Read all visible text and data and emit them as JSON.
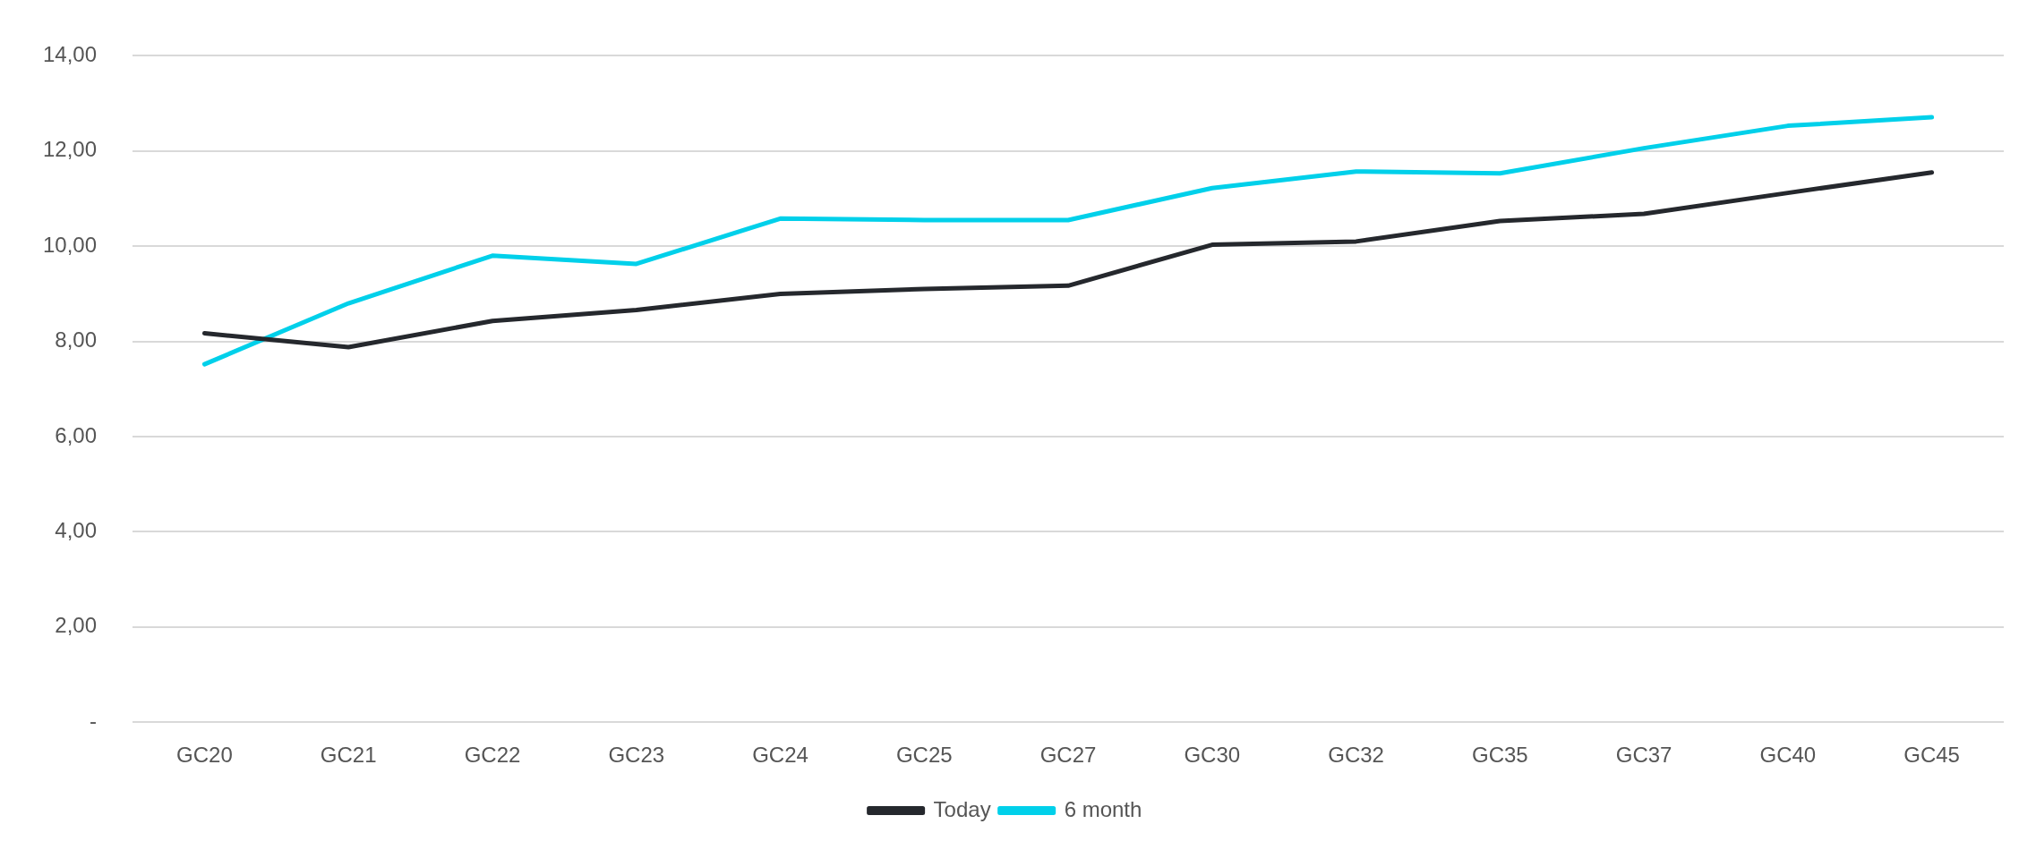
{
  "chart_data": {
    "type": "line",
    "categories": [
      "GC20",
      "GC21",
      "GC22",
      "GC23",
      "GC24",
      "GC25",
      "GC27",
      "GC30",
      "GC32",
      "GC35",
      "GC37",
      "GC40",
      "GC45"
    ],
    "series": [
      {
        "name": "Today",
        "color": "#25282d",
        "values": [
          8.17,
          7.88,
          8.43,
          8.66,
          9.0,
          9.1,
          9.17,
          10.03,
          10.1,
          10.53,
          10.68,
          11.12,
          11.55
        ]
      },
      {
        "name": "6 month",
        "color": "#00d0ea",
        "values": [
          7.52,
          8.8,
          9.8,
          9.63,
          10.58,
          10.55,
          10.55,
          11.22,
          11.57,
          11.53,
          12.06,
          12.53,
          12.71
        ]
      }
    ],
    "ylim": [
      0,
      14
    ],
    "yticks": [
      {
        "value": 0,
        "label": "-"
      },
      {
        "value": 2,
        "label": "2,00"
      },
      {
        "value": 4,
        "label": "4,00"
      },
      {
        "value": 6,
        "label": "6,00"
      },
      {
        "value": 8,
        "label": "8,00"
      },
      {
        "value": 10,
        "label": "10,00"
      },
      {
        "value": 12,
        "label": "12,00"
      },
      {
        "value": 14,
        "label": "14,00"
      }
    ],
    "grid": "y",
    "legend": "bottom",
    "marker": "none",
    "line_style": "solid"
  }
}
